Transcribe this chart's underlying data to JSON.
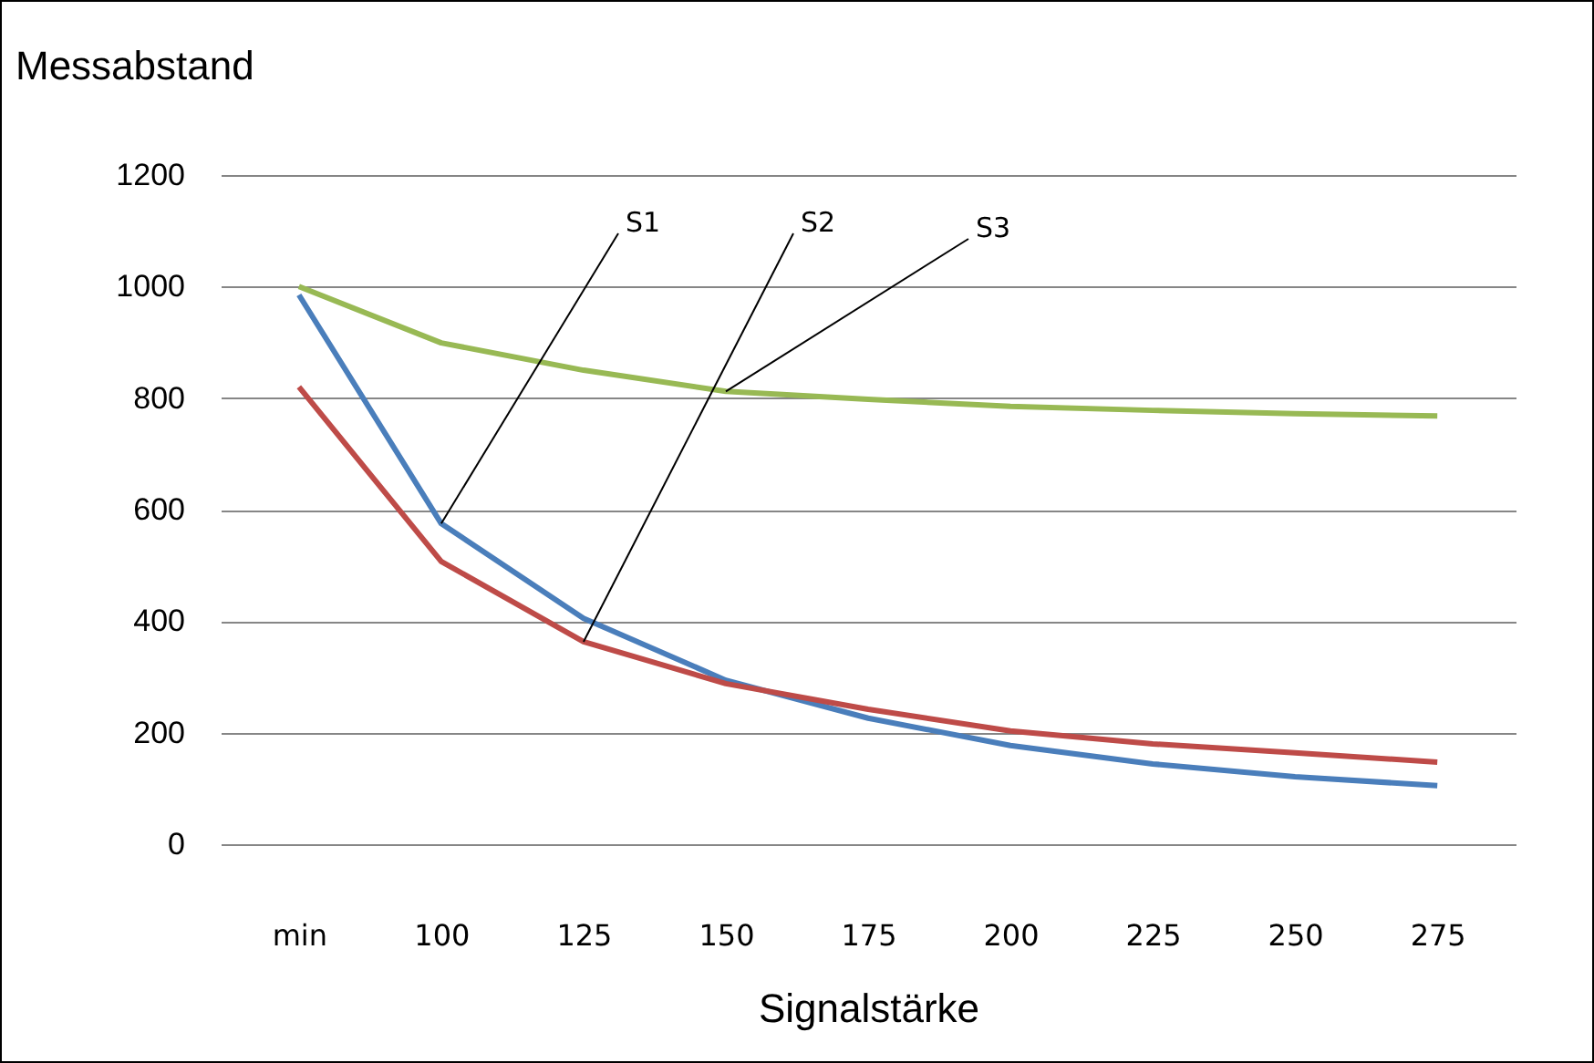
{
  "chart_data": {
    "type": "line",
    "xlabel": "Signalstärke",
    "ylabel": "Messabstand",
    "categories": [
      "min",
      "100",
      "125",
      "150",
      "175",
      "200",
      "225",
      "250",
      "275"
    ],
    "series": [
      {
        "name": "S1",
        "color": "#4a7ebb",
        "values": [
          985,
          575,
          405,
          294,
          226,
          177,
          144,
          121,
          105
        ]
      },
      {
        "name": "S2",
        "color": "#be4b48",
        "values": [
          820,
          507,
          363,
          288,
          242,
          203,
          180,
          164,
          147
        ]
      },
      {
        "name": "S3",
        "color": "#98b954",
        "values": [
          1000,
          899,
          850,
          812,
          798,
          785,
          778,
          772,
          768
        ]
      }
    ],
    "ylim": [
      0,
      1200
    ],
    "yticks": [
      0,
      200,
      400,
      600,
      800,
      1000,
      1200
    ],
    "grid": "y",
    "legend": false,
    "marker": "none",
    "line_style": "solid"
  }
}
